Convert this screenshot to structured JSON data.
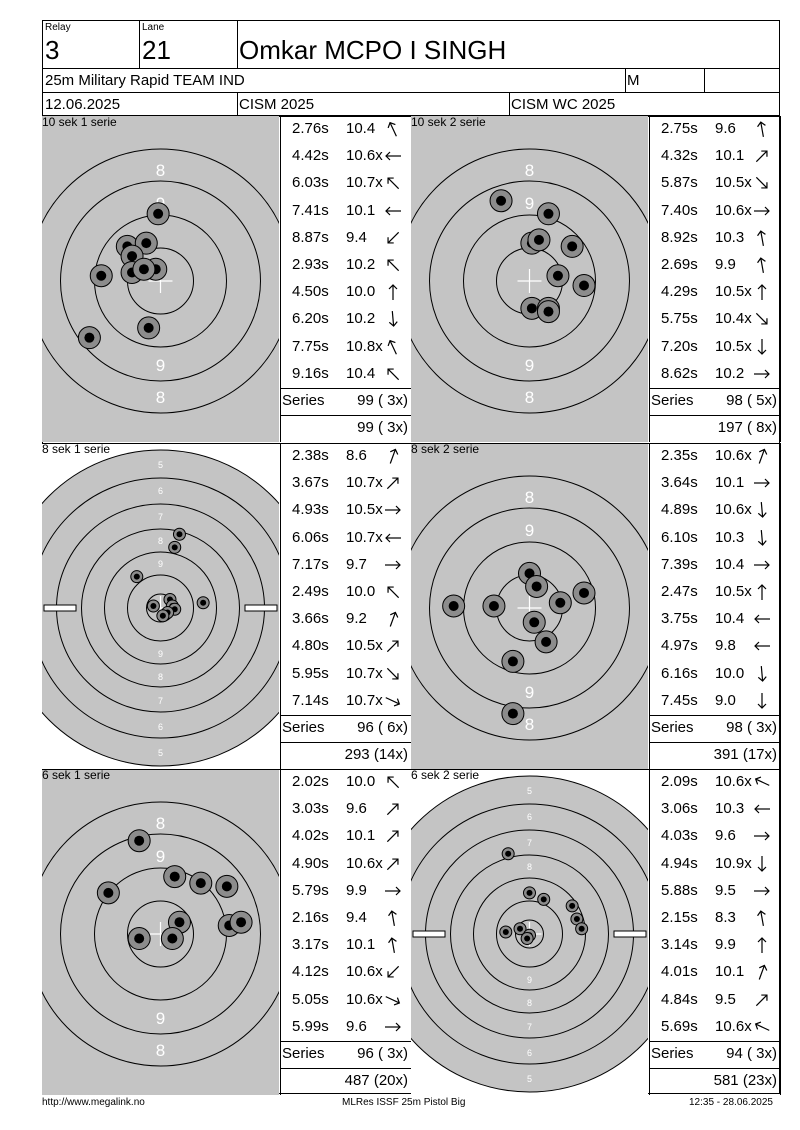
{
  "header": {
    "relay_label": "Relay",
    "relay": "3",
    "lane_label": "Lane",
    "lane": "21",
    "athlete": "Omkar MCPO I SINGH",
    "event": "25m Military Rapid TEAM IND",
    "gender": "M",
    "date": "12.06.2025",
    "competition": "CISM 2025",
    "championship": "CISM WC 2025"
  },
  "blocks": [
    {
      "label": "10 sek 1 serie",
      "target": "precision",
      "shots": [
        {
          "time": "2.76s",
          "score": "10.4",
          "dir": "up-left-steep"
        },
        {
          "time": "4.42s",
          "score": "10.6x",
          "dir": "left"
        },
        {
          "time": "6.03s",
          "score": "10.7x",
          "dir": "up-left"
        },
        {
          "time": "7.41s",
          "score": "10.1",
          "dir": "left"
        },
        {
          "time": "8.87s",
          "score": "9.4",
          "dir": "down-left"
        },
        {
          "time": "2.93s",
          "score": "10.2",
          "dir": "up-left"
        },
        {
          "time": "4.50s",
          "score": "10.0",
          "dir": "up"
        },
        {
          "time": "6.20s",
          "score": "10.2",
          "dir": "down-steep"
        },
        {
          "time": "7.75s",
          "score": "10.8x",
          "dir": "up-left-steep"
        },
        {
          "time": "9.16s",
          "score": "10.4",
          "dir": "up-left"
        }
      ],
      "series_label": "Series",
      "series": "99 ( 3x)",
      "cumulative": "99 ( 3x)"
    },
    {
      "label": "10 sek 2 serie",
      "target": "precision",
      "shots": [
        {
          "time": "2.75s",
          "score": "9.6",
          "dir": "up-steep"
        },
        {
          "time": "4.32s",
          "score": "10.1",
          "dir": "up-right"
        },
        {
          "time": "5.87s",
          "score": "10.5x",
          "dir": "down-right"
        },
        {
          "time": "7.40s",
          "score": "10.6x",
          "dir": "right"
        },
        {
          "time": "8.92s",
          "score": "10.3",
          "dir": "up-steep"
        },
        {
          "time": "2.69s",
          "score": "9.9",
          "dir": "up-steep"
        },
        {
          "time": "4.29s",
          "score": "10.5x",
          "dir": "up"
        },
        {
          "time": "5.75s",
          "score": "10.4x",
          "dir": "down-right"
        },
        {
          "time": "7.20s",
          "score": "10.5x",
          "dir": "down"
        },
        {
          "time": "8.62s",
          "score": "10.2",
          "dir": "right"
        }
      ],
      "series_label": "Series",
      "series": "98 ( 5x)",
      "cumulative": "197 ( 8x)"
    },
    {
      "label": "8 sek 1 serie",
      "target": "rapid",
      "shots": [
        {
          "time": "2.38s",
          "score": "8.6",
          "dir": "up-right-steep"
        },
        {
          "time": "3.67s",
          "score": "10.7x",
          "dir": "up-right"
        },
        {
          "time": "4.93s",
          "score": "10.5x",
          "dir": "right"
        },
        {
          "time": "6.06s",
          "score": "10.7x",
          "dir": "left"
        },
        {
          "time": "7.17s",
          "score": "9.7",
          "dir": "right"
        },
        {
          "time": "2.49s",
          "score": "10.0",
          "dir": "up-left"
        },
        {
          "time": "3.66s",
          "score": "9.2",
          "dir": "up-right-steep"
        },
        {
          "time": "4.80s",
          "score": "10.5x",
          "dir": "up-right"
        },
        {
          "time": "5.95s",
          "score": "10.7x",
          "dir": "down-right"
        },
        {
          "time": "7.14s",
          "score": "10.7x",
          "dir": "down-right-flat"
        }
      ],
      "series_label": "Series",
      "series": "96 ( 6x)",
      "cumulative": "293 (14x)"
    },
    {
      "label": "8 sek 2 serie",
      "target": "precision",
      "shots": [
        {
          "time": "2.35s",
          "score": "10.6x",
          "dir": "up-right-steep"
        },
        {
          "time": "3.64s",
          "score": "10.1",
          "dir": "right"
        },
        {
          "time": "4.89s",
          "score": "10.6x",
          "dir": "down-steep"
        },
        {
          "time": "6.10s",
          "score": "10.3",
          "dir": "down-steep"
        },
        {
          "time": "7.39s",
          "score": "10.4",
          "dir": "right"
        },
        {
          "time": "2.47s",
          "score": "10.5x",
          "dir": "up"
        },
        {
          "time": "3.75s",
          "score": "10.4",
          "dir": "left"
        },
        {
          "time": "4.97s",
          "score": "9.8",
          "dir": "left"
        },
        {
          "time": "6.16s",
          "score": "10.0",
          "dir": "down-steep"
        },
        {
          "time": "7.45s",
          "score": "9.0",
          "dir": "down"
        }
      ],
      "series_label": "Series",
      "series": "98 ( 3x)",
      "cumulative": "391 (17x)"
    },
    {
      "label": "6 sek 1 serie",
      "target": "precision",
      "shots": [
        {
          "time": "2.02s",
          "score": "10.0",
          "dir": "up-left"
        },
        {
          "time": "3.03s",
          "score": "9.6",
          "dir": "up-right"
        },
        {
          "time": "4.02s",
          "score": "10.1",
          "dir": "up-right"
        },
        {
          "time": "4.90s",
          "score": "10.6x",
          "dir": "up-right"
        },
        {
          "time": "5.79s",
          "score": "9.9",
          "dir": "right"
        },
        {
          "time": "2.16s",
          "score": "9.4",
          "dir": "up-steep"
        },
        {
          "time": "3.17s",
          "score": "10.1",
          "dir": "up-steep"
        },
        {
          "time": "4.12s",
          "score": "10.6x",
          "dir": "down-left"
        },
        {
          "time": "5.05s",
          "score": "10.6x",
          "dir": "down-right-flat"
        },
        {
          "time": "5.99s",
          "score": "9.6",
          "dir": "right"
        }
      ],
      "series_label": "Series",
      "series": "96 ( 3x)",
      "cumulative": "487 (20x)"
    },
    {
      "label": "6 sek 2 serie",
      "target": "rapid",
      "shots": [
        {
          "time": "2.09s",
          "score": "10.6x",
          "dir": "up-left-flat"
        },
        {
          "time": "3.06s",
          "score": "10.3",
          "dir": "left"
        },
        {
          "time": "4.03s",
          "score": "9.6",
          "dir": "right"
        },
        {
          "time": "4.94s",
          "score": "10.9x",
          "dir": "down"
        },
        {
          "time": "5.88s",
          "score": "9.5",
          "dir": "right"
        },
        {
          "time": "2.15s",
          "score": "8.3",
          "dir": "up-steep"
        },
        {
          "time": "3.14s",
          "score": "9.9",
          "dir": "up"
        },
        {
          "time": "4.01s",
          "score": "10.1",
          "dir": "up-right-steep"
        },
        {
          "time": "4.84s",
          "score": "9.5",
          "dir": "up-right"
        },
        {
          "time": "5.69s",
          "score": "10.6x",
          "dir": "up-left-flat"
        }
      ],
      "series_label": "Series",
      "series": "94 ( 3x)",
      "cumulative": "581 (23x)"
    }
  ],
  "target_labels": {
    "precision": {
      "outer": "8",
      "mid": "9"
    },
    "rapid": [
      "5",
      "6",
      "7",
      "8",
      "9"
    ]
  },
  "footer": {
    "url": "http://www.megalink.no",
    "software": "MLRes ISSF 25m Pistol Big",
    "timestamp": "12:35 - 28.06.2025"
  }
}
